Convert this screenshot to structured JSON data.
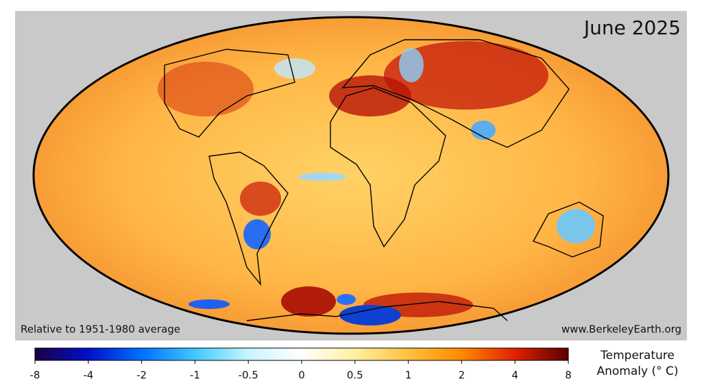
{
  "header": {
    "title": "June 2025"
  },
  "map": {
    "baseline_note": "Relative to 1951-1980 average",
    "source": "www.BerkeleyEarth.org"
  },
  "colorbar": {
    "label_lines": [
      "Temperature",
      "Anomaly (° C)"
    ],
    "ticks": [
      -8,
      -4,
      -2,
      -1,
      -0.5,
      0,
      0.5,
      1,
      2,
      4,
      8
    ],
    "colors": [
      "#1c0040",
      "#0010c8",
      "#0070ff",
      "#40c8ff",
      "#c8f4ff",
      "#ffffff",
      "#fff0a0",
      "#ffc040",
      "#ff8a00",
      "#e02000",
      "#5a0000"
    ]
  }
}
